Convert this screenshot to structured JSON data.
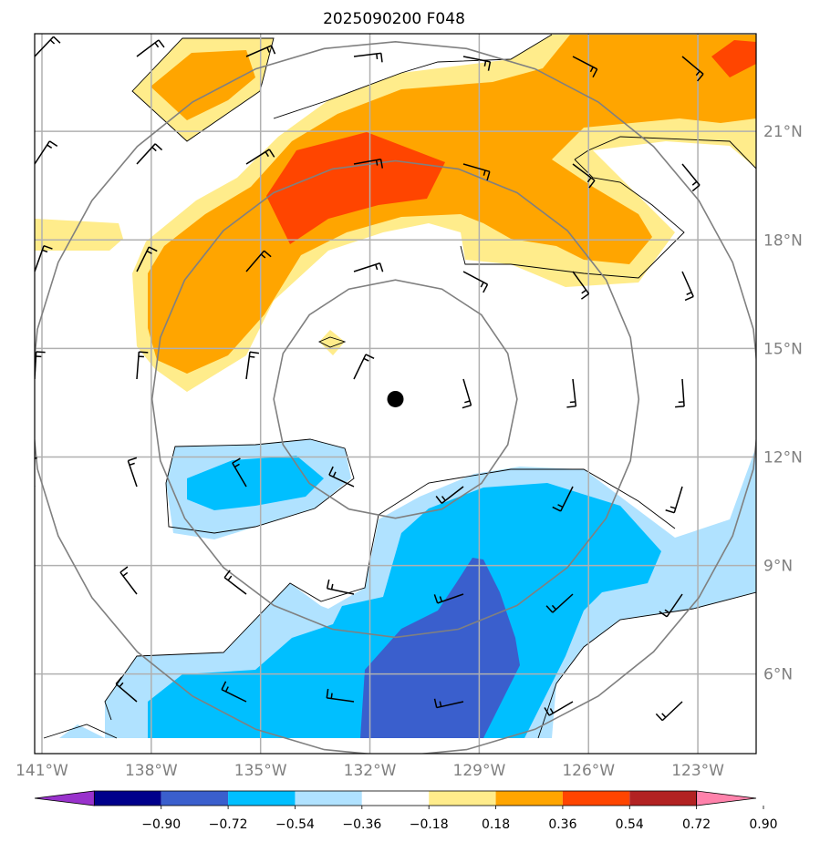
{
  "title": "2025090200 F048",
  "map": {
    "lon_range": [
      -141.2,
      -121.4
    ],
    "lat_range": [
      3.8,
      23.7
    ],
    "lon_ticks": [
      {
        "value": -141,
        "label": "141°W"
      },
      {
        "value": -138,
        "label": "138°W"
      },
      {
        "value": -135,
        "label": "135°W"
      },
      {
        "value": -132,
        "label": "132°W"
      },
      {
        "value": -129,
        "label": "129°W"
      },
      {
        "value": -126,
        "label": "126°W"
      },
      {
        "value": -123,
        "label": "123°W"
      }
    ],
    "lat_ticks": [
      {
        "value": 6,
        "label": "6°N"
      },
      {
        "value": 9,
        "label": "9°N"
      },
      {
        "value": 12,
        "label": "12°N"
      },
      {
        "value": 15,
        "label": "15°N"
      },
      {
        "value": 18,
        "label": "18°N"
      },
      {
        "value": 21,
        "label": "21°N"
      }
    ],
    "storm_center": {
      "lon": -131.3,
      "lat": 13.6
    },
    "range_ring_radii_deg_lat": [
      3,
      6,
      9
    ]
  },
  "colorbar": {
    "levels": [
      "−0.90",
      "−0.72",
      "−0.54",
      "−0.36",
      "−0.18",
      "0.18",
      "0.36",
      "0.54",
      "0.72",
      "0.90"
    ],
    "colors": [
      "#9932cc",
      "#00008b",
      "#3a5fcd",
      "#00bfff",
      "#b0e2ff",
      "#ffffff",
      "#ffec8b",
      "#ffa500",
      "#ff4500",
      "#b22222",
      "#ff82ab"
    ]
  },
  "fill_colors": {
    "light_yellow": "#ffec8b",
    "orange": "#ffa500",
    "red_orange": "#ff4500",
    "light_blue": "#b0e2ff",
    "deep_sky_blue": "#00bfff",
    "royal_blue": "#3a5fcd"
  }
}
